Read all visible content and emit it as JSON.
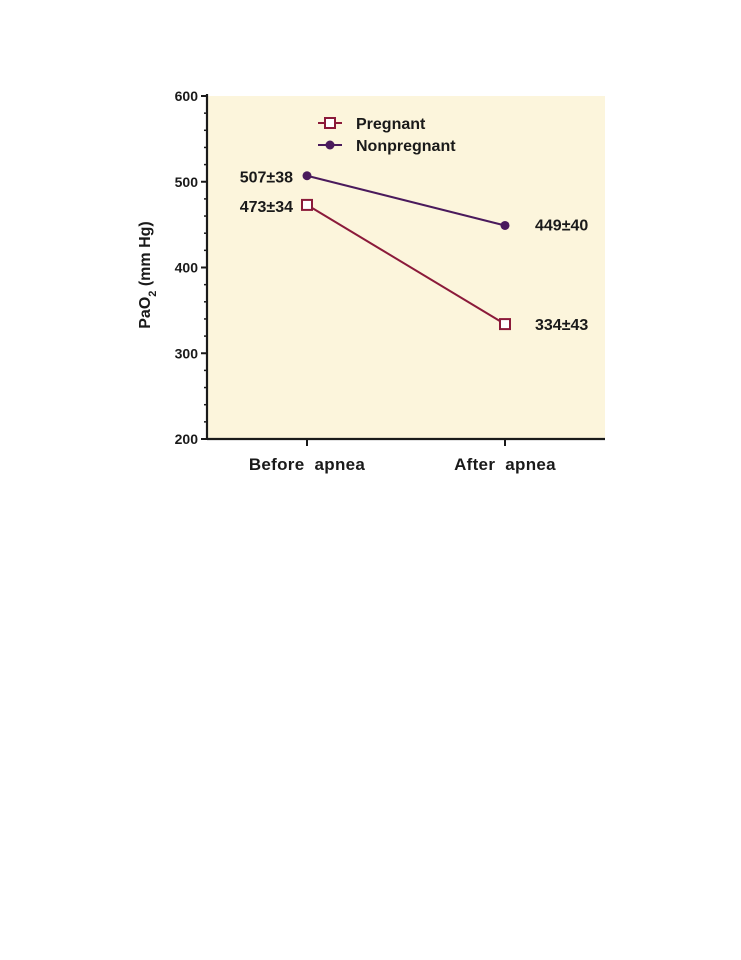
{
  "chart_data": {
    "type": "line",
    "title": "",
    "ylabel_main": "PaO",
    "ylabel_sub": "2",
    "ylabel_tail": " (mm Hg)",
    "xlabel": "",
    "categories": [
      "Before  apnea",
      "After  apnea"
    ],
    "ylim": [
      200,
      600
    ],
    "yticks": [
      200,
      300,
      400,
      500,
      600
    ],
    "grid": false,
    "legend_position": "top-center",
    "series": [
      {
        "name": "Pregnant",
        "marker": "open-square",
        "color": "#8b1a3a",
        "values": [
          473,
          334
        ],
        "labels": [
          "473±34",
          "334±43"
        ]
      },
      {
        "name": "Nonpregnant",
        "marker": "filled-circle",
        "color": "#4a1a5c",
        "values": [
          507,
          449
        ],
        "labels": [
          "507±38",
          "449±40"
        ]
      }
    ]
  },
  "colors": {
    "plot_background": "#fcf5dc",
    "axis": "#1a1a1a"
  }
}
